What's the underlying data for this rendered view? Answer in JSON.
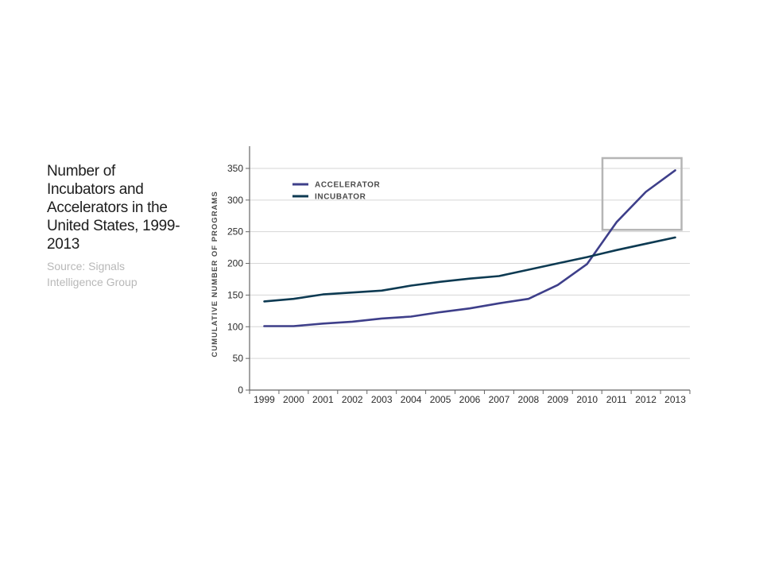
{
  "colors": {
    "accelerator": "#3e3f8a",
    "incubator": "#0d3a52",
    "grid": "#d6d6d6",
    "axis": "#666666",
    "highlight_box": "#b5b5b5",
    "source_text": "#b8b8b8"
  },
  "sidebar": {
    "title": "Number of Incubators and Accelerators in the United States, 1999-2013",
    "source": "Source: Signals Intelligence Group"
  },
  "chart_data": {
    "type": "line",
    "title": "Number of Incubators and Accelerators in the United States, 1999-2013",
    "xlabel": "",
    "ylabel": "CUMULATIVE NUMBER OF PROGRAMS",
    "categories": [
      "1999",
      "2000",
      "2001",
      "2002",
      "2003",
      "2004",
      "2005",
      "2006",
      "2007",
      "2008",
      "2009",
      "2010",
      "2011",
      "2012",
      "2013"
    ],
    "yticks": [
      0,
      50,
      100,
      150,
      200,
      250,
      300,
      350
    ],
    "ylim": [
      0,
      365
    ],
    "grid": true,
    "legend_position": "top-left",
    "series": [
      {
        "name": "ACCELERATOR",
        "values": [
          101,
          101,
          105,
          108,
          113,
          116,
          123,
          129,
          137,
          144,
          166,
          199,
          265,
          313,
          347
        ]
      },
      {
        "name": "INCUBATOR",
        "values": [
          140,
          144,
          151,
          154,
          157,
          165,
          171,
          176,
          180,
          190,
          200,
          210,
          221,
          231,
          241
        ]
      }
    ],
    "highlight": {
      "x_from": "2010.9",
      "x_to": "2013",
      "y_from": 253,
      "y_to": 365
    }
  }
}
